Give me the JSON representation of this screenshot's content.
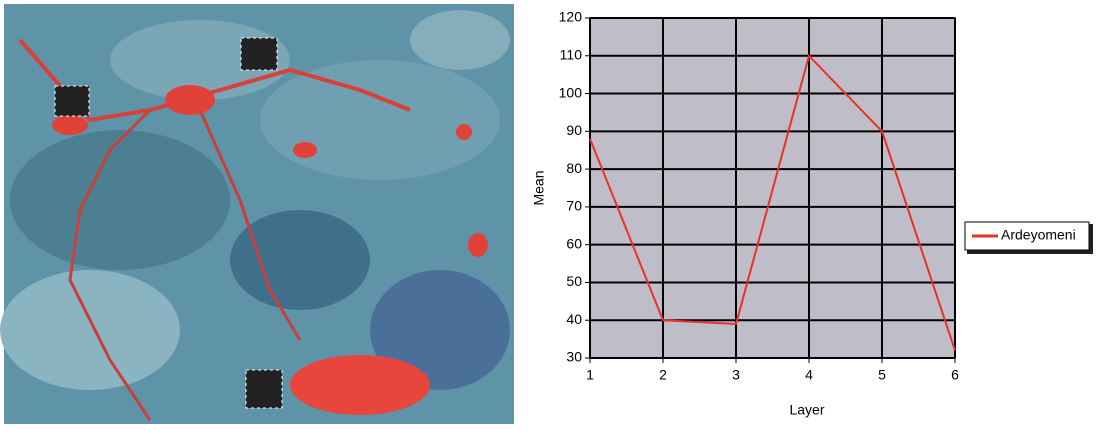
{
  "chart_data": {
    "type": "line",
    "x_label": "Layer",
    "y_label": "Mean",
    "x": [
      1,
      2,
      3,
      4,
      5,
      6
    ],
    "xlim": [
      1,
      6
    ],
    "xticks": [
      1,
      2,
      3,
      4,
      5,
      6
    ],
    "ylim": [
      30,
      120
    ],
    "yticks": [
      30,
      40,
      50,
      60,
      70,
      80,
      90,
      100,
      110,
      120
    ],
    "grid": true,
    "legend": "right",
    "series": [
      {
        "name": "Ardeyomeni",
        "color": "#e8322a",
        "values": [
          88,
          40,
          39,
          110,
          90,
          32
        ]
      }
    ]
  }
}
